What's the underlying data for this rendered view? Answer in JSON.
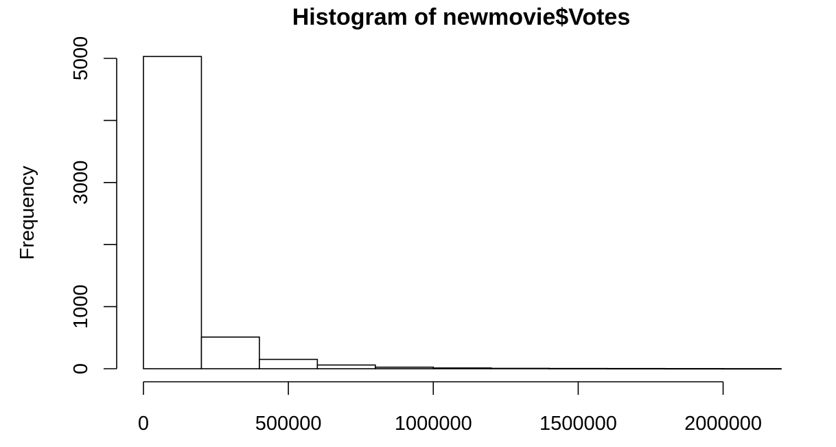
{
  "chart_data": {
    "type": "bar",
    "title": "Histogram of newmovie$Votes",
    "xlabel": "",
    "ylabel": "Frequency",
    "bins": [
      {
        "start": 0,
        "end": 200000,
        "count": 5030
      },
      {
        "start": 200000,
        "end": 400000,
        "count": 510
      },
      {
        "start": 400000,
        "end": 600000,
        "count": 150
      },
      {
        "start": 600000,
        "end": 800000,
        "count": 60
      },
      {
        "start": 800000,
        "end": 1000000,
        "count": 25
      },
      {
        "start": 1000000,
        "end": 1200000,
        "count": 12
      },
      {
        "start": 1200000,
        "end": 1400000,
        "count": 6
      },
      {
        "start": 1400000,
        "end": 1600000,
        "count": 4
      },
      {
        "start": 1600000,
        "end": 1800000,
        "count": 3
      },
      {
        "start": 1800000,
        "end": 2000000,
        "count": 2
      },
      {
        "start": 2000000,
        "end": 2200000,
        "count": 1
      }
    ],
    "xlim": [
      0,
      2200000
    ],
    "ylim": [
      0,
      5000
    ],
    "x_ticks": [
      0,
      500000,
      1000000,
      1500000,
      2000000
    ],
    "x_tick_labels": [
      "0",
      "500000",
      "1000000",
      "1500000",
      "2000000"
    ],
    "y_ticks": [
      0,
      1000,
      2000,
      3000,
      4000,
      5000
    ],
    "y_tick_labels": [
      "0",
      "1000",
      "",
      "3000",
      "",
      "5000"
    ],
    "bar_fill": "#ffffff",
    "bar_stroke": "#000000",
    "grid": false,
    "legend": "none"
  }
}
